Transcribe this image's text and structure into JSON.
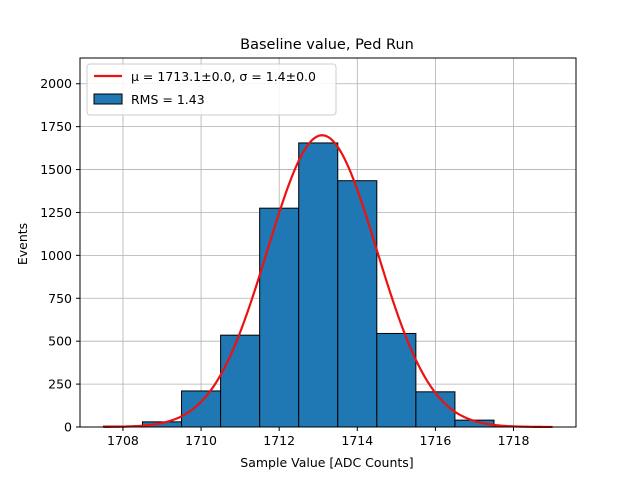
{
  "chart_data": {
    "type": "bar",
    "title": "Baseline value, Ped Run",
    "xlabel": "Sample Value [ADC Counts]",
    "ylabel": "Events",
    "xlim": [
      1706.9,
      1719.6
    ],
    "ylim": [
      0,
      2150
    ],
    "grid": true,
    "legend_position": "top-left",
    "x_ticks": [
      1708,
      1710,
      1712,
      1714,
      1716,
      1718
    ],
    "y_ticks": [
      0,
      250,
      500,
      750,
      1000,
      1250,
      1500,
      1750,
      2000
    ],
    "bins": [
      {
        "x0": 1707.5,
        "x1": 1708.5,
        "value": 5
      },
      {
        "x0": 1708.5,
        "x1": 1709.5,
        "value": 30
      },
      {
        "x0": 1709.5,
        "x1": 1710.5,
        "value": 210
      },
      {
        "x0": 1710.5,
        "x1": 1711.5,
        "value": 535
      },
      {
        "x0": 1711.5,
        "x1": 1712.5,
        "value": 1275
      },
      {
        "x0": 1712.5,
        "x1": 1713.5,
        "value": 1655
      },
      {
        "x0": 1713.5,
        "x1": 1714.5,
        "value": 1435
      },
      {
        "x0": 1714.5,
        "x1": 1715.5,
        "value": 545
      },
      {
        "x0": 1715.5,
        "x1": 1716.5,
        "value": 205
      },
      {
        "x0": 1716.5,
        "x1": 1717.5,
        "value": 40
      },
      {
        "x0": 1717.5,
        "x1": 1718.5,
        "value": 2
      }
    ],
    "fit": {
      "mu": 1713.1,
      "sigma": 1.4,
      "amplitude": 1700,
      "x_range": [
        1707.5,
        1719.0
      ],
      "color": "#ee1111"
    },
    "bar_color": "#1f77b4",
    "legend": [
      {
        "label": "μ = 1713.1±0.0, σ = 1.4±0.0",
        "kind": "line"
      },
      {
        "label": "RMS = 1.43",
        "kind": "patch"
      }
    ]
  }
}
